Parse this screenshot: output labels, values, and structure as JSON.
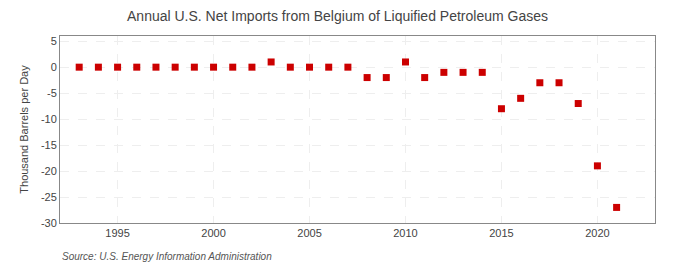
{
  "chart_data": {
    "type": "scatter",
    "title": "Annual U.S. Net Imports from Belgium of Liquified Petroleum Gases",
    "ylabel": "Thousand Barrels per Day",
    "annotations": [
      "Source: U.S. Energy Information Administration"
    ],
    "x": [
      1993,
      1994,
      1995,
      1996,
      1997,
      1998,
      1999,
      2000,
      2001,
      2002,
      2003,
      2004,
      2005,
      2006,
      2007,
      2008,
      2009,
      2010,
      2011,
      2012,
      2013,
      2014,
      2015,
      2016,
      2017,
      2018,
      2019,
      2020,
      2021
    ],
    "values": [
      0,
      0,
      0,
      0,
      0,
      0,
      0,
      0,
      0,
      0,
      1,
      0,
      0,
      0,
      0,
      -2,
      -2,
      1,
      -2,
      -1,
      -1,
      -1,
      -8,
      -6,
      -3,
      -3,
      -7,
      -19,
      -27
    ],
    "xlim": [
      1992,
      2023
    ],
    "xticks": [
      1995,
      2000,
      2005,
      2010,
      2015,
      2020
    ],
    "ylim": [
      -30,
      6
    ],
    "yticks": [
      5,
      0,
      -5,
      -10,
      -15,
      -20,
      -25,
      -30
    ],
    "color": "#cc0000",
    "marker": "square",
    "grid": true
  }
}
